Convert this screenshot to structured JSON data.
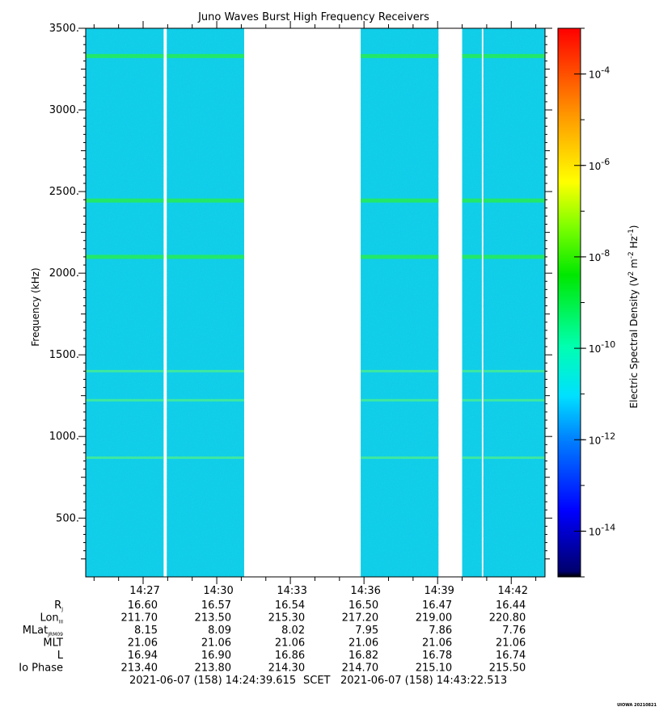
{
  "chart_data": {
    "type": "heatmap",
    "title": "Juno Waves Burst High Frequency Receivers",
    "ylabel": "Frequency (kHz)",
    "ylim": [
      140,
      3500
    ],
    "yticks": [
      {
        "value": 500,
        "label": "500."
      },
      {
        "value": 1000,
        "label": "1000."
      },
      {
        "value": 1500,
        "label": "1500."
      },
      {
        "value": 2000,
        "label": "2000."
      },
      {
        "value": 2500,
        "label": "2500."
      },
      {
        "value": 3000,
        "label": "3000."
      },
      {
        "value": 3500,
        "label": "3500."
      }
    ],
    "xlim": [
      "14:24:39.615",
      "14:43:22.513"
    ],
    "xticks": [
      "14:27",
      "14:30",
      "14:33",
      "14:36",
      "14:39",
      "14:42"
    ],
    "data_intervals": [
      [
        "14:24:39",
        "14:27:50"
      ],
      [
        "14:27:58",
        "14:31:07"
      ],
      [
        "14:35:52",
        "14:39:02"
      ],
      [
        "14:40:00",
        "14:40:48"
      ],
      [
        "14:40:52",
        "14:43:22"
      ]
    ],
    "emission_lines_khz": [
      3330,
      2445,
      2100,
      1400,
      1222,
      870
    ],
    "background_level": "10^-12",
    "colorbar": {
      "label_base": "Electric Spectral Density (V",
      "label_exp1": "2",
      "label_mid": " m",
      "label_exp2": "-2",
      "label_mid2": " Hz",
      "label_exp3": "-1",
      "label_end": ")",
      "scale": "log",
      "range_exp": [
        -15,
        -3
      ],
      "ticks": [
        {
          "exp": -4,
          "base": "10",
          "label": "-4"
        },
        {
          "exp": -6,
          "base": "10",
          "label": "-6"
        },
        {
          "exp": -8,
          "base": "10",
          "label": "-8"
        },
        {
          "exp": -10,
          "base": "10",
          "label": "-10"
        },
        {
          "exp": -12,
          "base": "10",
          "label": "-12"
        },
        {
          "exp": -14,
          "base": "10",
          "label": "-14"
        }
      ]
    },
    "ephemeris": {
      "rows": [
        {
          "label": "R",
          "sub": "J",
          "values": [
            "16.60",
            "16.57",
            "16.54",
            "16.50",
            "16.47",
            "16.44"
          ]
        },
        {
          "label": "Lon",
          "sub": "III",
          "values": [
            "211.70",
            "213.50",
            "215.30",
            "217.20",
            "219.00",
            "220.80"
          ]
        },
        {
          "label": "MLat",
          "sub": "JRM09",
          "values": [
            "8.15",
            "8.09",
            "8.02",
            "7.95",
            "7.86",
            "7.76"
          ]
        },
        {
          "label": "MLT",
          "sub": "",
          "values": [
            "21.06",
            "21.06",
            "21.06",
            "21.06",
            "21.06",
            "21.06"
          ]
        },
        {
          "label": "L",
          "sub": "",
          "values": [
            "16.94",
            "16.90",
            "16.86",
            "16.82",
            "16.78",
            "16.74"
          ]
        },
        {
          "label": "Io Phase",
          "sub": "",
          "values": [
            "213.40",
            "213.80",
            "214.30",
            "214.70",
            "215.10",
            "215.50"
          ]
        }
      ]
    },
    "footer": {
      "start": "2021-06-07 (158) 14:24:39.615",
      "scet": "SCET",
      "end": "2021-06-07 (158) 14:43:22.513"
    },
    "credit": "UIOWA 20210821"
  }
}
